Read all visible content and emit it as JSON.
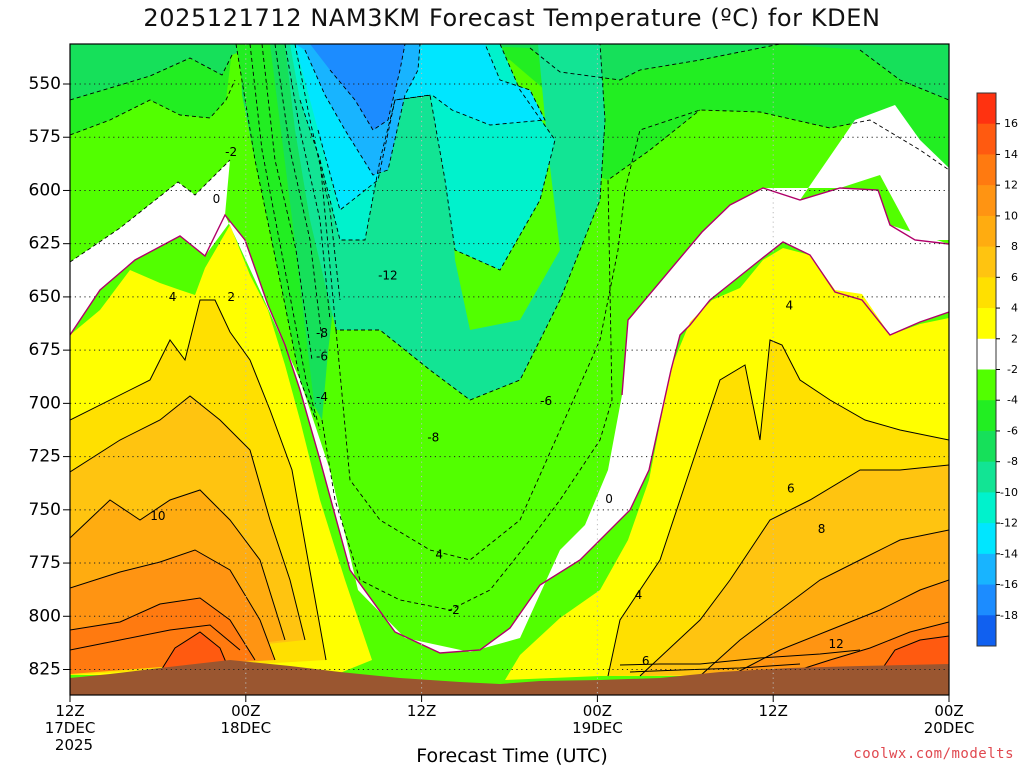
{
  "chart_data": {
    "type": "heatmap",
    "title": "2025121712 NAM3KM Forecast Temperature (ºC) for KDEN",
    "xlabel": "Forecast Time (UTC)",
    "ylabel": "",
    "ylim": [
      835,
      535
    ],
    "y_ticks": [
      550,
      575,
      600,
      625,
      650,
      675,
      700,
      725,
      750,
      775,
      800,
      825
    ],
    "xlim": [
      0,
      60
    ],
    "x_ticks": [
      {
        "hour": 0,
        "lines": [
          "12Z",
          "17DEC",
          "2025"
        ]
      },
      {
        "hour": 12,
        "lines": [
          "00Z",
          "18DEC"
        ]
      },
      {
        "hour": 24,
        "lines": [
          "12Z"
        ]
      },
      {
        "hour": 36,
        "lines": [
          "00Z",
          "19DEC"
        ]
      },
      {
        "hour": 48,
        "lines": [
          "12Z"
        ]
      },
      {
        "hour": 60,
        "lines": [
          "00Z",
          "20DEC"
        ]
      }
    ],
    "colorbar": {
      "labels": [
        16,
        14,
        12,
        10,
        8,
        6,
        4,
        2,
        -2,
        -4,
        -6,
        -8,
        -10,
        -12,
        -14,
        -16,
        -18
      ],
      "colors": [
        "#ff3210",
        "#ff5a10",
        "#ff7a10",
        "#ff9412",
        "#ffac10",
        "#ffc410",
        "#ffe000",
        "#ffff00",
        "#ffffff",
        "#52ff00",
        "#22ee22",
        "#16e05a",
        "#12e494",
        "#00f2cc",
        "#00e6ff",
        "#18b4ff",
        "#1c8cff",
        "#1060f0"
      ]
    },
    "contour_labels": [
      {
        "text": "-2",
        "hour": 11,
        "p": 582
      },
      {
        "text": "0",
        "hour": 10,
        "p": 604
      },
      {
        "text": "4",
        "hour": 7,
        "p": 650
      },
      {
        "text": "2",
        "hour": 11,
        "p": 650
      },
      {
        "text": "-12",
        "hour": 21.7,
        "p": 640
      },
      {
        "text": "-8",
        "hour": 17.2,
        "p": 667
      },
      {
        "text": "-6",
        "hour": 17.2,
        "p": 678
      },
      {
        "text": "-4",
        "hour": 17.2,
        "p": 697
      },
      {
        "text": "-8",
        "hour": 24.8,
        "p": 716
      },
      {
        "text": "-6",
        "hour": 32.5,
        "p": 699
      },
      {
        "text": "10",
        "hour": 6,
        "p": 753
      },
      {
        "text": "4",
        "hour": 25.2,
        "p": 771
      },
      {
        "text": "-2",
        "hour": 26.2,
        "p": 797
      },
      {
        "text": "0",
        "hour": 36.8,
        "p": 745
      },
      {
        "text": "4",
        "hour": 38.8,
        "p": 790
      },
      {
        "text": "6",
        "hour": 39.3,
        "p": 821
      },
      {
        "text": "4",
        "hour": 49.1,
        "p": 654
      },
      {
        "text": "6",
        "hour": 49.2,
        "p": 740
      },
      {
        "text": "8",
        "hour": 51.3,
        "p": 759
      },
      {
        "text": "12",
        "hour": 52.3,
        "p": 813
      }
    ],
    "grid": "dotted"
  },
  "watermark": "coolwx.com/modelts"
}
